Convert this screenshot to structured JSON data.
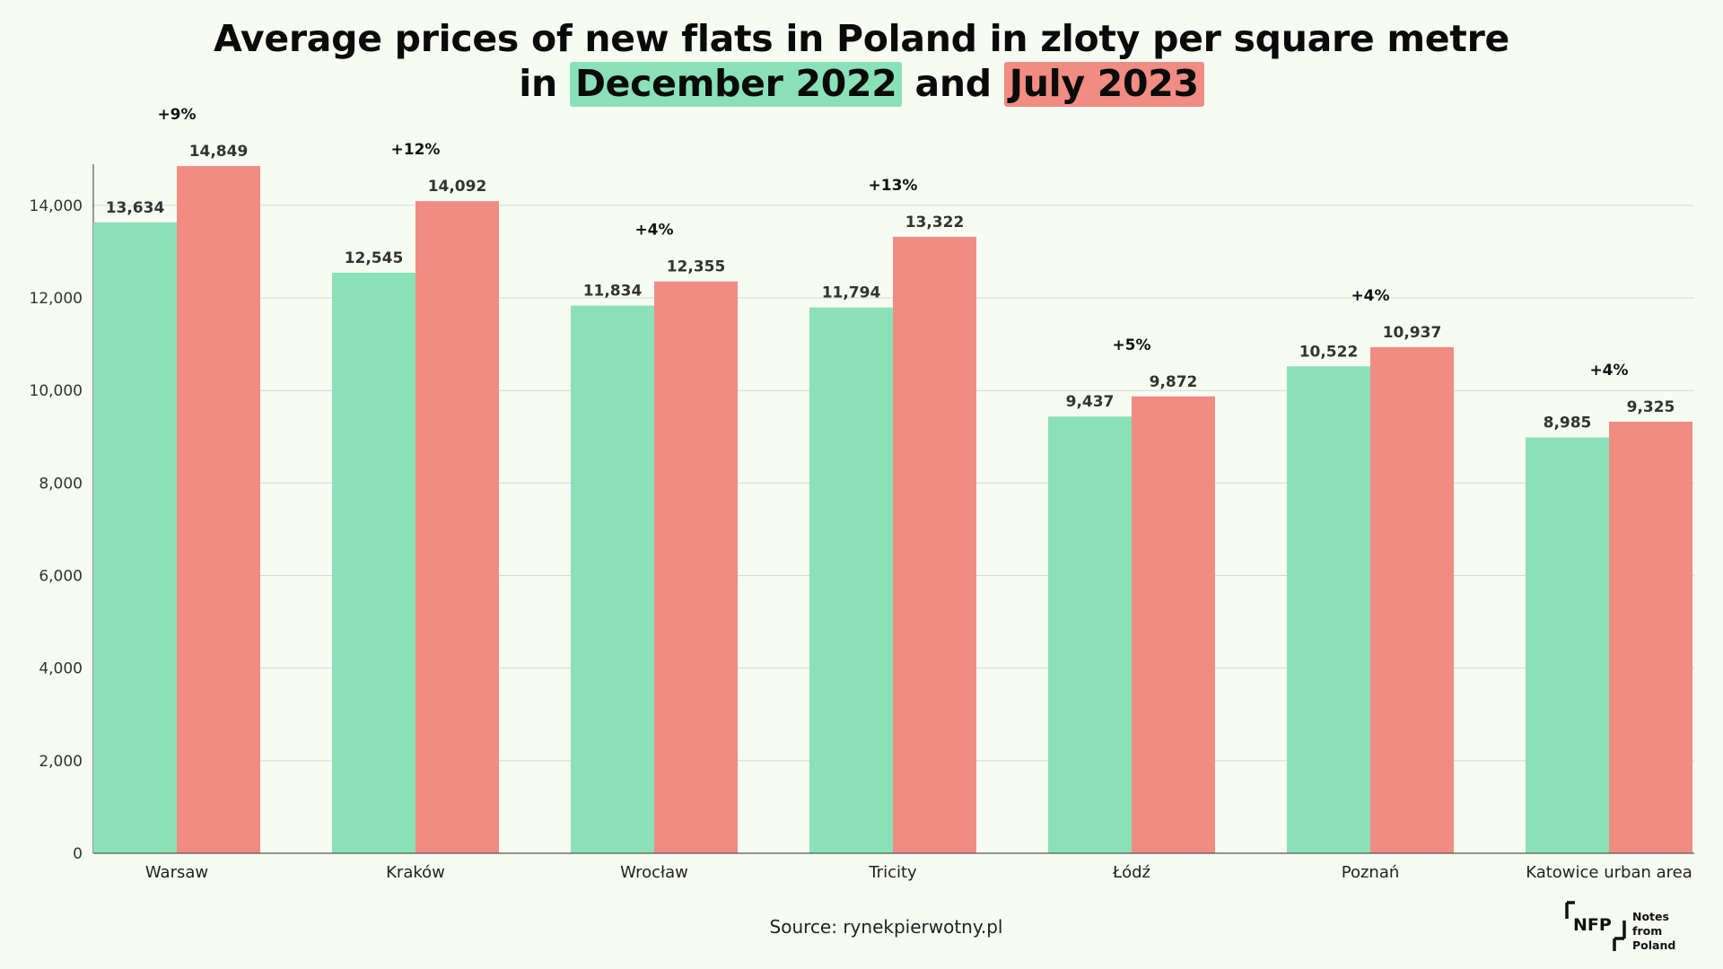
{
  "title": {
    "line1": "Average prices of new flats in Poland in zloty per square metre",
    "line2_prefix": "in",
    "series1_label": "December 2022",
    "connector": "and",
    "series2_label": "July 2023"
  },
  "source": "Source: rynekpierwotny.pl",
  "logo": {
    "mark": "NFP",
    "text_line1": "Notes from",
    "text_line2": "Poland"
  },
  "colors": {
    "series1": "#8be1b7",
    "series2": "#f08c82",
    "grid": "#d6d6d6",
    "axis": "#555555",
    "background": "#f7fcf2"
  },
  "chart_data": {
    "type": "bar",
    "categories": [
      "Warsaw",
      "Kraków",
      "Wrocław",
      "Tricity",
      "Łódź",
      "Poznań",
      "Katowice urban area"
    ],
    "series": [
      {
        "name": "December 2022",
        "values": [
          13634,
          12545,
          11834,
          11794,
          9437,
          10522,
          8985
        ],
        "labels": [
          "13,634",
          "12,545",
          "11,834",
          "11,794",
          "9,437",
          "10,522",
          "8,985"
        ]
      },
      {
        "name": "July 2023",
        "values": [
          14849,
          14092,
          12355,
          13322,
          9872,
          10937,
          9325
        ],
        "labels": [
          "14,849",
          "14,092",
          "12,355",
          "13,322",
          "9,872",
          "10,937",
          "9,325"
        ]
      }
    ],
    "changes": [
      "+9%",
      "+12%",
      "+4%",
      "+13%",
      "+5%",
      "+4%",
      "+4%"
    ],
    "yticks": [
      0,
      2000,
      4000,
      6000,
      8000,
      10000,
      12000,
      14000
    ],
    "ytick_labels": [
      "0",
      "2,000",
      "4,000",
      "6,000",
      "8,000",
      "10,000",
      "12,000",
      "14,000"
    ],
    "ylim": [
      0,
      14849
    ],
    "grid": true,
    "legend": "in title",
    "xlabel": "",
    "ylabel": ""
  }
}
